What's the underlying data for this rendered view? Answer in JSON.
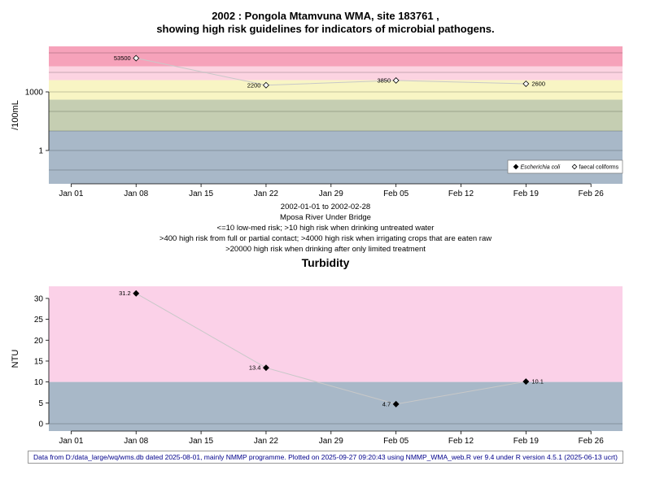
{
  "page_title": {
    "line1": "2002 : Pongola Mtamvuna WMA, site 183761 ,",
    "line2": "showing high risk guidelines for indicators of microbial pathogens."
  },
  "captions": [
    "2002-01-01 to 2002-02-28",
    "Mposa River Under Bridge",
    "<=10 low-med risk; >10 high risk when drinking untreated water",
    ">400 high risk from full or partial contact; >4000 high risk when irrigating crops that are eaten raw",
    ">20000 high risk when drinking after only limited treatment"
  ],
  "footer_note": "Data from D:/data_large/wq/wms.db dated 2025-08-01, mainly NMMP programme. Plotted on 2025-09-27 09:20:43 using NMMP_WMA_web.R ver 9.4 under R version 4.5.1 (2025-06-13 ucrt)",
  "chart_data": [
    {
      "type": "line",
      "title": "2002 : Pongola Mtamvuna WMA, site 183761 , showing high risk guidelines for indicators of microbial pathogens.",
      "ylabel": "/100mL",
      "xlabel": "",
      "y_scale": "log10",
      "y_range": [
        0.0196,
        215000
      ],
      "x_range_days": [
        -2.4,
        59.4
      ],
      "x_tick_days": [
        0,
        7,
        14,
        21,
        28,
        35,
        42,
        49,
        56
      ],
      "x_tick_labels": [
        "Jan 01",
        "Jan 08",
        "Jan 15",
        "Jan 22",
        "Jan 29",
        "Feb 05",
        "Feb 12",
        "Feb 19",
        "Feb 26"
      ],
      "y_tick_values": [
        1,
        1000
      ],
      "y_tick_labels": [
        "1",
        "1000"
      ],
      "grid_values": [
        0.1,
        1,
        10,
        100,
        1000,
        10000,
        100000
      ],
      "bands": [
        {
          "label": ">20000 high risk when drinking after only limited treatment",
          "from": 20000,
          "to": 215000,
          "color": "#f6a2ba"
        },
        {
          "label": "4000-20000 high risk when irrigating crops that are eaten raw",
          "from": 4000,
          "to": 20000,
          "color": "#fcd3e1"
        },
        {
          "label": "400-4000 high risk from full or partial contact",
          "from": 400,
          "to": 4000,
          "color": "#f8f5c4"
        },
        {
          "label": "10-400 high risk when drinking untreated water",
          "from": 10,
          "to": 400,
          "color": "#c5ceb2"
        },
        {
          "label": "<=10 low-med risk",
          "from": 0.0196,
          "to": 10,
          "color": "#a8b8c8"
        }
      ],
      "series": [
        {
          "name": "faecal coliforms",
          "marker": "open-diamond",
          "points": [
            {
              "x": "Jan 08",
              "day": 7,
              "value": 53500,
              "label": "53500",
              "label_side": "left"
            },
            {
              "x": "Jan 22",
              "day": 21,
              "value": 2200,
              "label": "2200",
              "label_side": "left"
            },
            {
              "x": "Feb 05",
              "day": 35,
              "value": 3850,
              "label": "3850",
              "label_side": "left"
            },
            {
              "x": "Feb 19",
              "day": 49,
              "value": 2600,
              "label": "2600",
              "label_side": "right"
            }
          ]
        }
      ],
      "legend": {
        "position": "bottom-right",
        "entries": [
          {
            "label": "Escherichia coli",
            "marker": "filled-diamond",
            "italic": true
          },
          {
            "label": "faecal coliforms",
            "marker": "open-diamond",
            "italic": false
          }
        ]
      }
    },
    {
      "type": "line",
      "title": "Turbidity",
      "ylabel": "NTU",
      "xlabel": "",
      "y_scale": "linear",
      "y_range": [
        -1.75,
        32.9
      ],
      "x_range_days": [
        -2.4,
        59.4
      ],
      "x_tick_days": [
        0,
        7,
        14,
        21,
        28,
        35,
        42,
        49,
        56
      ],
      "x_tick_labels": [
        "Jan 01",
        "Jan 08",
        "Jan 15",
        "Jan 22",
        "Jan 29",
        "Feb 05",
        "Feb 12",
        "Feb 19",
        "Feb 26"
      ],
      "y_tick_values": [
        0,
        5,
        10,
        15,
        20,
        25,
        30
      ],
      "y_tick_labels": [
        "0",
        "5",
        "10",
        "15",
        "20",
        "25",
        "30"
      ],
      "grid_values": [
        0
      ],
      "bands": [
        {
          "label": ">10 NTU high band",
          "from": 10,
          "to": 32.9,
          "color": "#fbd1e8"
        },
        {
          "label": "<=10 NTU low band",
          "from": -1.75,
          "to": 10,
          "color": "#a8b8c8"
        }
      ],
      "series": [
        {
          "name": "Turbidity",
          "marker": "filled-diamond",
          "points": [
            {
              "x": "Jan 08",
              "day": 7,
              "value": 31.2,
              "label": "31.2",
              "label_side": "left"
            },
            {
              "x": "Jan 22",
              "day": 21,
              "value": 13.4,
              "label": "13.4",
              "label_side": "left"
            },
            {
              "x": "Feb 05",
              "day": 35,
              "value": 4.7,
              "label": "4.7",
              "label_side": "left"
            },
            {
              "x": "Feb 19",
              "day": 49,
              "value": 10.1,
              "label": "10.1",
              "label_side": "right"
            }
          ]
        }
      ]
    }
  ]
}
